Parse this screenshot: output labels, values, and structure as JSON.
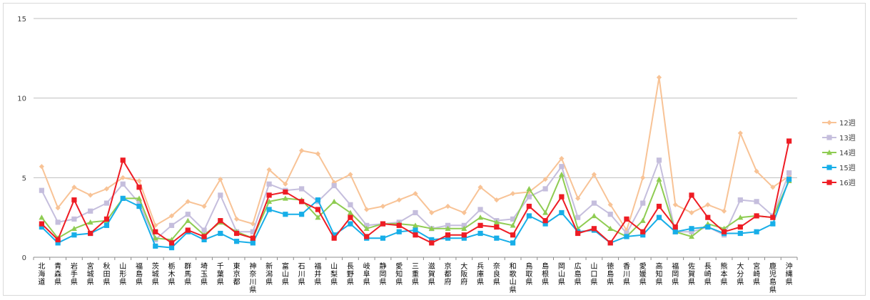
{
  "chart_data": {
    "type": "line",
    "title": "",
    "xlabel": "",
    "ylabel": "",
    "ylim": [
      0,
      15
    ],
    "yticks": [
      0,
      5,
      10,
      15
    ],
    "grid": true,
    "legend_position": "right",
    "categories": [
      "北海道",
      "青森県",
      "岩手県",
      "宮城県",
      "秋田県",
      "山形県",
      "福島県",
      "茨城県",
      "栃木県",
      "群馬県",
      "埼玉県",
      "千葉県",
      "東京都",
      "神奈川県",
      "新潟県",
      "富山県",
      "石川県",
      "福井県",
      "山梨県",
      "長野県",
      "岐阜県",
      "静岡県",
      "愛知県",
      "三重県",
      "滋賀県",
      "京都府",
      "大阪府",
      "兵庫県",
      "奈良県",
      "和歌山県",
      "鳥取県",
      "島根県",
      "岡山県",
      "広島県",
      "山口県",
      "徳島県",
      "香川県",
      "愛媛県",
      "高知県",
      "福岡県",
      "佐賀県",
      "長崎県",
      "熊本県",
      "大分県",
      "宮崎県",
      "鹿児島県",
      "沖縄県"
    ],
    "series": [
      {
        "name": "12週",
        "color": "#f8c396",
        "marker": "diamond",
        "values": [
          5.7,
          3.1,
          4.4,
          3.9,
          4.3,
          5.0,
          4.8,
          2.0,
          2.6,
          3.5,
          3.2,
          4.9,
          2.4,
          2.1,
          5.5,
          4.6,
          6.7,
          6.5,
          4.7,
          5.2,
          3.0,
          3.2,
          3.6,
          4.0,
          2.8,
          3.2,
          2.8,
          4.4,
          3.6,
          4.0,
          4.1,
          4.9,
          6.2,
          3.7,
          5.2,
          3.3,
          1.7,
          5.0,
          11.3,
          3.3,
          2.8,
          3.3,
          2.9,
          7.8,
          5.4,
          4.4,
          5.1
        ]
      },
      {
        "name": "13週",
        "color": "#c5bedd",
        "marker": "square",
        "values": [
          4.2,
          2.2,
          2.4,
          2.9,
          3.4,
          4.6,
          3.4,
          1.1,
          2.0,
          2.7,
          1.7,
          3.9,
          1.6,
          1.6,
          4.6,
          4.2,
          4.3,
          3.5,
          4.5,
          3.3,
          2.0,
          2.1,
          2.2,
          2.8,
          1.8,
          2.0,
          2.0,
          3.0,
          2.3,
          2.4,
          3.8,
          4.3,
          5.7,
          2.5,
          3.4,
          2.7,
          1.5,
          3.4,
          6.1,
          1.6,
          1.6,
          1.9,
          1.4,
          3.6,
          3.5,
          2.6,
          5.3
        ]
      },
      {
        "name": "14週",
        "color": "#8fcc52",
        "marker": "triangle",
        "values": [
          2.5,
          1.2,
          1.8,
          2.2,
          2.3,
          3.7,
          3.7,
          1.2,
          1.1,
          2.3,
          1.4,
          2.2,
          1.6,
          1.2,
          3.5,
          3.7,
          3.6,
          2.5,
          3.5,
          2.8,
          1.8,
          2.1,
          2.1,
          2.0,
          1.8,
          1.8,
          1.8,
          2.5,
          2.2,
          2.0,
          4.3,
          2.8,
          5.2,
          1.8,
          2.6,
          1.8,
          1.3,
          2.3,
          4.9,
          1.6,
          1.3,
          2.1,
          1.8,
          2.5,
          2.6,
          2.5,
          4.8
        ]
      },
      {
        "name": "15週",
        "color": "#17aee8",
        "marker": "square",
        "values": [
          1.9,
          0.9,
          1.4,
          1.5,
          2.0,
          3.7,
          3.2,
          0.7,
          0.6,
          1.6,
          1.1,
          1.5,
          1.0,
          0.9,
          3.0,
          2.7,
          2.7,
          3.6,
          1.4,
          2.1,
          1.2,
          1.2,
          1.6,
          1.7,
          1.1,
          1.2,
          1.2,
          1.5,
          1.2,
          0.9,
          2.6,
          2.1,
          2.8,
          1.6,
          1.7,
          0.9,
          1.3,
          1.4,
          2.5,
          1.6,
          1.8,
          1.9,
          1.5,
          1.5,
          1.6,
          2.1,
          4.9
        ]
      },
      {
        "name": "16週",
        "color": "#ee1c24",
        "marker": "square",
        "values": [
          2.1,
          1.1,
          3.6,
          1.5,
          2.4,
          6.1,
          4.4,
          1.6,
          0.9,
          1.7,
          1.3,
          2.3,
          1.5,
          1.2,
          3.9,
          4.1,
          3.5,
          3.0,
          1.2,
          2.5,
          1.3,
          2.1,
          2.0,
          1.4,
          0.9,
          1.4,
          1.4,
          2.0,
          1.9,
          1.4,
          3.2,
          2.3,
          3.8,
          1.5,
          1.8,
          0.9,
          2.4,
          1.6,
          3.2,
          1.9,
          3.9,
          2.5,
          1.6,
          1.9,
          2.6,
          2.5,
          7.3
        ]
      }
    ]
  }
}
